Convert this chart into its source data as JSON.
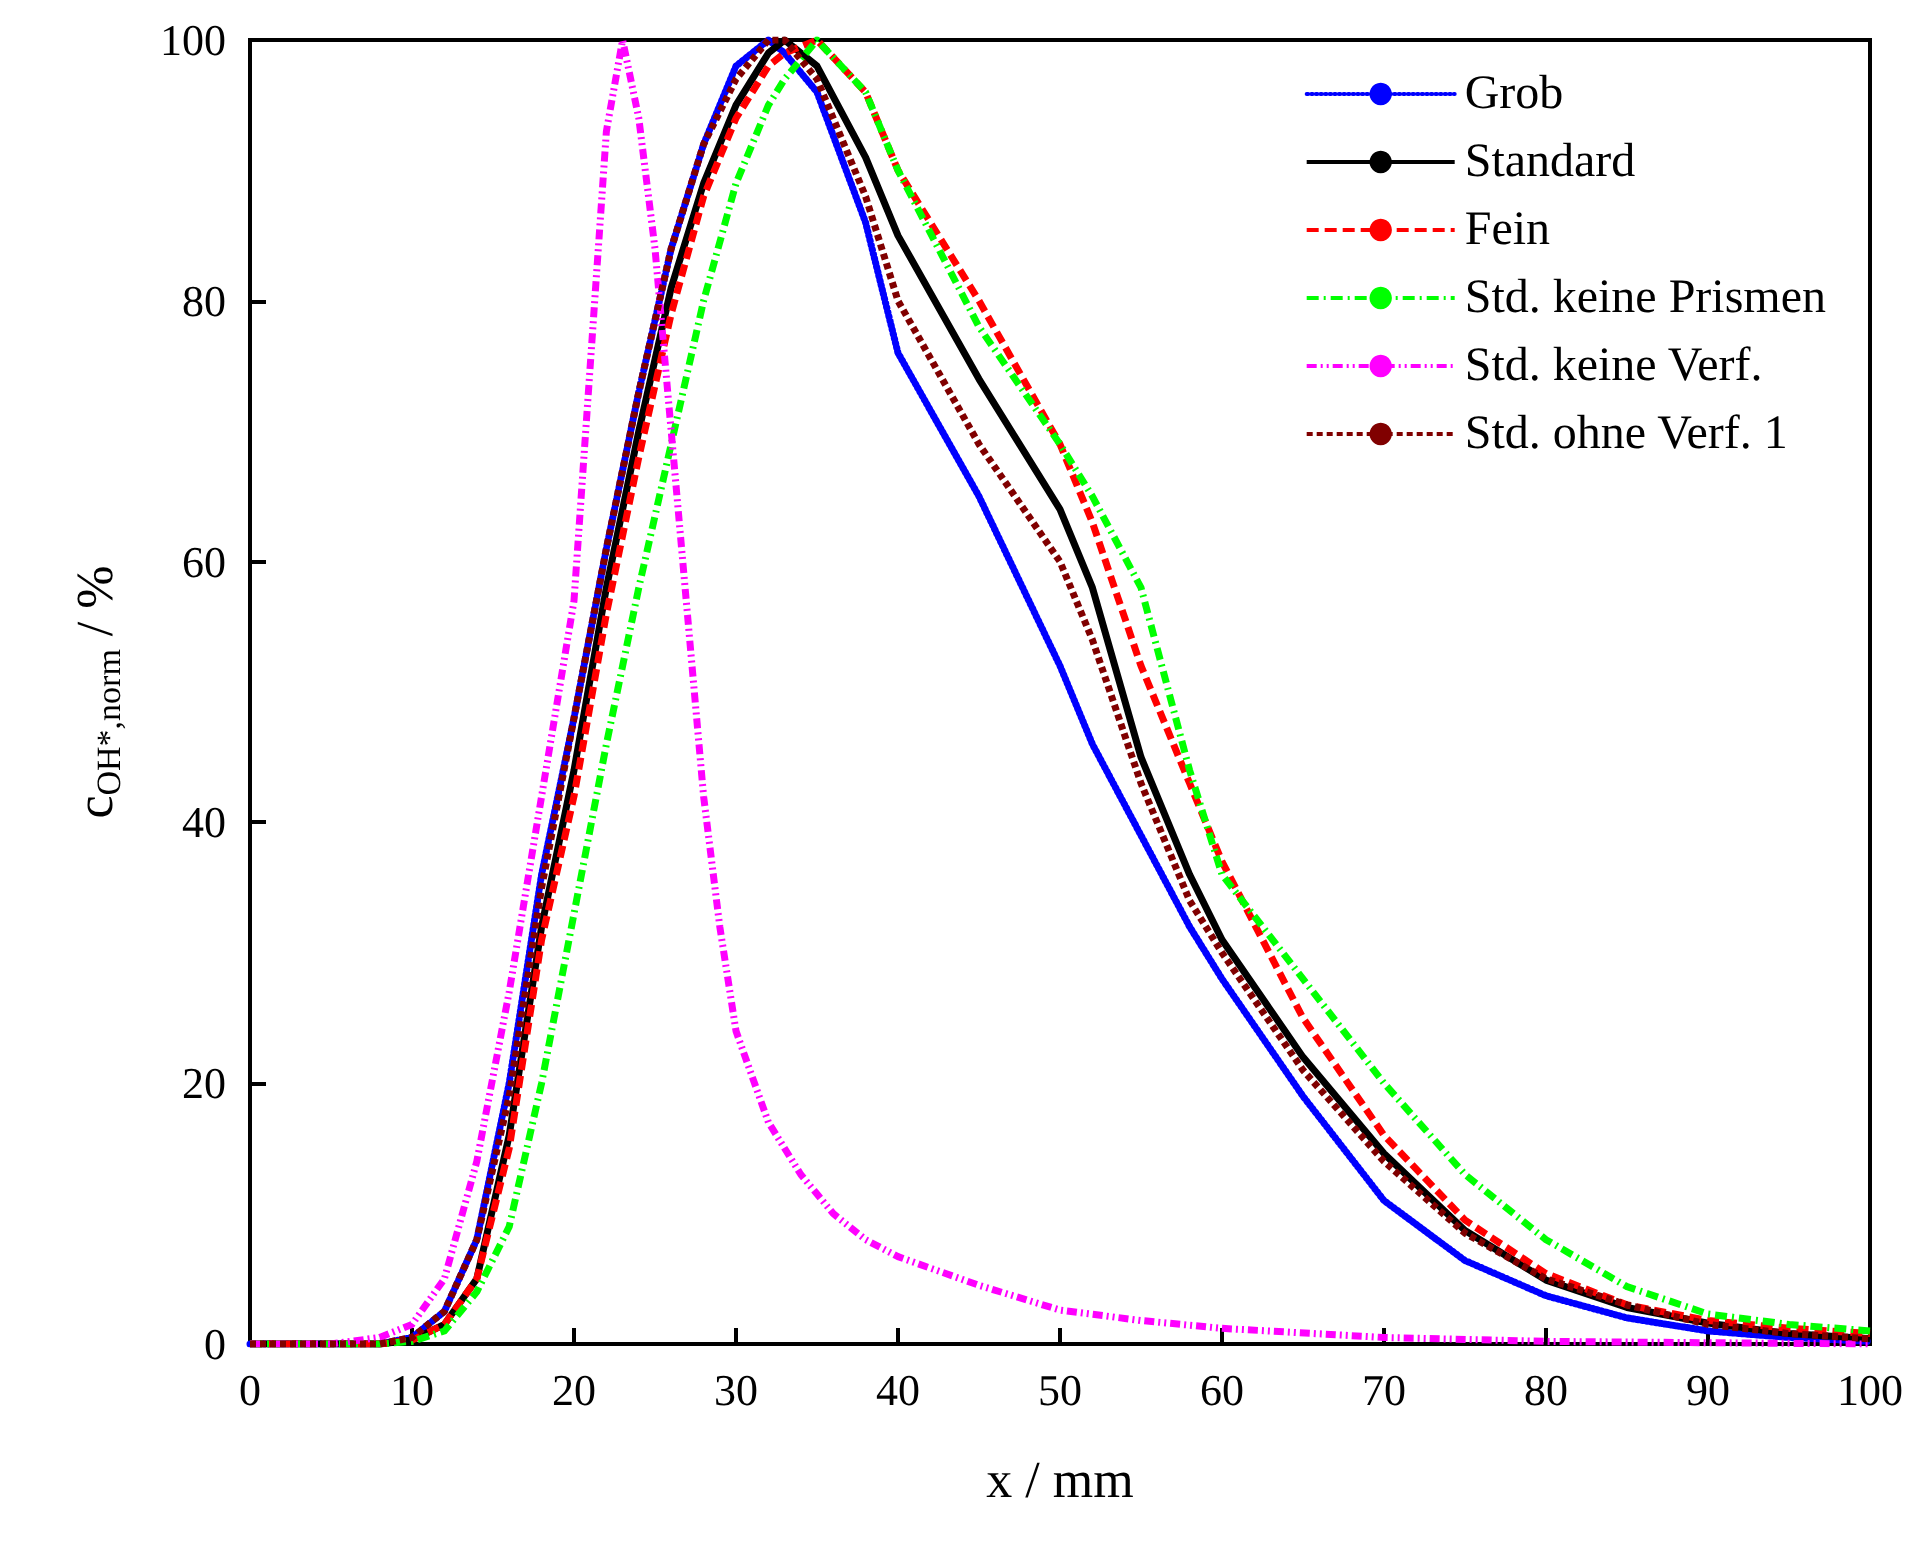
{
  "chart_data": {
    "type": "line",
    "xlabel": "x / mm",
    "ylabel": "c$_{OH*,norm}$ / %",
    "xlim": [
      0,
      100
    ],
    "xticks": [
      0,
      10,
      20,
      30,
      40,
      50,
      60,
      70,
      80,
      90,
      100
    ],
    "ylim": [
      0,
      100
    ],
    "yticks": [
      0,
      20,
      40,
      60,
      80,
      100
    ],
    "grid": false,
    "legend": "top right",
    "marker": "none",
    "x": [
      0,
      5,
      8,
      10,
      12,
      14,
      16,
      18,
      20,
      22,
      24,
      26,
      28,
      30,
      32,
      33,
      35,
      38,
      40,
      45,
      50,
      52,
      55,
      58,
      60,
      65,
      70,
      75,
      80,
      85,
      90,
      95,
      100
    ],
    "series": [
      {
        "name": "Grob",
        "color": "#0000ff",
        "line_style": "dotted",
        "values": [
          0,
          0,
          0,
          0.5,
          2.5,
          8,
          20,
          36,
          48,
          61,
          73,
          84,
          92,
          98,
          100,
          99,
          96,
          86,
          76,
          65,
          52,
          46,
          39,
          32,
          28,
          19,
          11,
          6.4,
          3.7,
          2,
          1,
          0.5,
          0.2
        ]
      },
      {
        "name": "Standard",
        "color": "#000000",
        "line_style": "solid",
        "values": [
          0,
          0,
          0,
          0.3,
          1.5,
          5,
          16,
          32,
          44,
          58,
          70,
          81,
          89,
          95,
          99,
          100,
          98,
          91,
          85,
          74,
          64,
          58,
          45,
          36,
          31,
          22,
          14.6,
          8.7,
          4.9,
          2.8,
          1.6,
          0.8,
          0.4
        ]
      },
      {
        "name": "Fein",
        "color": "#ff0000",
        "line_style": "dashed",
        "values": [
          0,
          0,
          0,
          0.3,
          1.5,
          5,
          15,
          31,
          42,
          56,
          68,
          79,
          88,
          94,
          98,
          99,
          100,
          96,
          90,
          80,
          69,
          63,
          52,
          43,
          37,
          25,
          16,
          9.5,
          5.4,
          3,
          1.8,
          1.2,
          0.8
        ]
      },
      {
        "name": "Std. keine Prismen",
        "color": "#00ff00",
        "line_style": "dashdot",
        "values": [
          0,
          0,
          0,
          0.2,
          1,
          4,
          9,
          20,
          33,
          46,
          58,
          69,
          80,
          89,
          95,
          97,
          100,
          96,
          90,
          78,
          69,
          65,
          58,
          44,
          36,
          28,
          20,
          13,
          8,
          4.4,
          2.3,
          1.5,
          1
        ]
      },
      {
        "name": "Std. keine Verf.",
        "color": "#ff00ff",
        "line_style": "dashdotdot",
        "x": [
          0,
          5,
          8,
          10,
          12,
          14,
          16,
          18,
          20,
          21,
          22,
          23,
          24,
          25,
          26,
          27,
          28,
          29,
          30,
          32,
          34,
          36,
          38,
          40,
          45,
          50,
          55,
          60,
          70,
          80,
          90,
          100
        ],
        "values": [
          0,
          0,
          0.5,
          1.5,
          5,
          14,
          27,
          42,
          57,
          75,
          93,
          100,
          94,
          84,
          70,
          56,
          42,
          32,
          24,
          17,
          13,
          10,
          8,
          6.7,
          4.5,
          2.6,
          1.8,
          1.2,
          0.5,
          0.2,
          0.1,
          0
        ]
      },
      {
        "name": "Std. ohne Verf. 1",
        "color": "#800000",
        "line_style": "shortdash",
        "values": [
          0,
          0,
          0,
          0.5,
          2.5,
          8,
          19,
          35,
          48,
          61,
          73,
          84,
          92,
          97,
          100,
          100,
          97,
          88,
          80,
          69,
          60,
          54,
          43,
          34,
          30,
          21,
          14,
          8.5,
          5,
          3,
          1.5,
          0.8,
          0.4
        ]
      }
    ]
  }
}
